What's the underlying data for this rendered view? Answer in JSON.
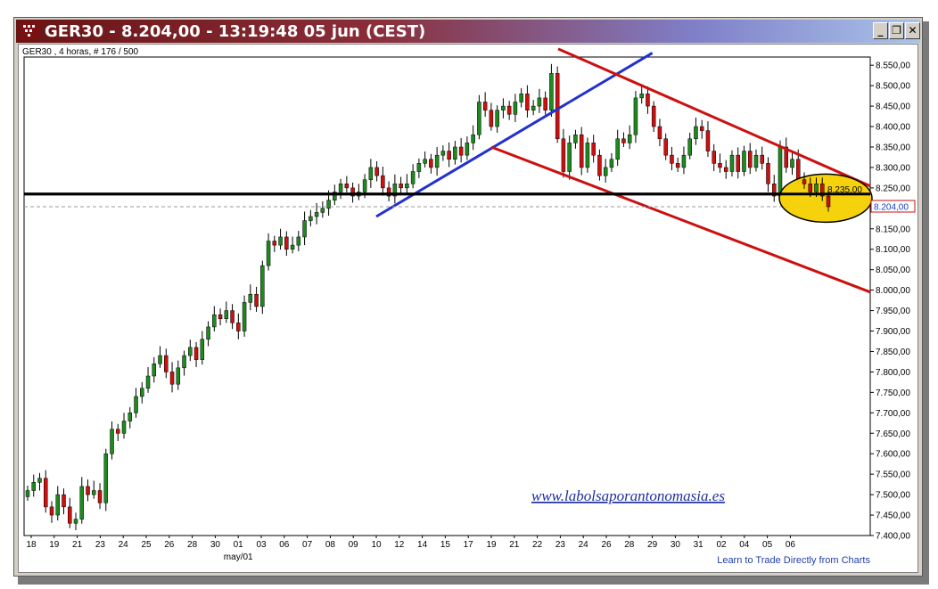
{
  "window": {
    "title": "GER30 - 8.204,00 - 13:19:48  05 jun (CEST)",
    "buttons": {
      "minimize": "_",
      "restore": "❐",
      "close": "✕"
    }
  },
  "chart_header": "GER30 , 4 horas, # 176 / 500",
  "watermark": "www.labolsaporantonomasia.es",
  "footer_link": "Learn to Trade Directly from Charts",
  "month_label": "may/01",
  "chart_data": {
    "type": "candlestick",
    "title": "GER30",
    "timeframe": "4 horas",
    "y_ticks": [
      8550,
      8500,
      8450,
      8400,
      8350,
      8300,
      8250,
      8200,
      8150,
      8100,
      8050,
      8000,
      7950,
      7900,
      7850,
      7800,
      7750,
      7700,
      7650,
      7600,
      7550,
      7500,
      7450,
      7400
    ],
    "y_tick_labels": [
      "8.550,00",
      "8.500,00",
      "8.450,00",
      "8.400,00",
      "8.350,00",
      "8.300,00",
      "8.250,00",
      "8.200,00",
      "8.150,00",
      "8.100,00",
      "8.050,00",
      "8.000,00",
      "7.950,00",
      "7.900,00",
      "7.850,00",
      "7.800,00",
      "7.750,00",
      "7.700,00",
      "7.650,00",
      "7.600,00",
      "7.550,00",
      "7.500,00",
      "7.450,00",
      "7.400,00"
    ],
    "ylim": [
      7400,
      8570
    ],
    "x_labels": [
      "18",
      "19",
      "21",
      "23",
      "24",
      "25",
      "26",
      "28",
      "30",
      "01",
      "03",
      "06",
      "07",
      "08",
      "09",
      "10",
      "12",
      "14",
      "15",
      "17",
      "19",
      "21",
      "22",
      "23",
      "24",
      "26",
      "28",
      "29",
      "30",
      "31",
      "02",
      "04",
      "05",
      "06"
    ],
    "current_price": 8204,
    "current_price_label": "8.204,00",
    "marked_level": 8235,
    "marked_level_label": "8.235,00",
    "closes": [
      7510,
      7530,
      7540,
      7470,
      7450,
      7500,
      7470,
      7430,
      7440,
      7520,
      7500,
      7510,
      7480,
      7600,
      7660,
      7650,
      7680,
      7700,
      7740,
      7760,
      7790,
      7820,
      7840,
      7800,
      7770,
      7810,
      7840,
      7860,
      7830,
      7880,
      7910,
      7940,
      7930,
      7950,
      7920,
      7900,
      7970,
      7990,
      7960,
      8060,
      8120,
      8110,
      8130,
      8100,
      8110,
      8130,
      8170,
      8180,
      8190,
      8200,
      8220,
      8240,
      8260,
      8250,
      8230,
      8240,
      8270,
      8300,
      8280,
      8250,
      8230,
      8260,
      8250,
      8260,
      8290,
      8310,
      8320,
      8300,
      8330,
      8340,
      8320,
      8350,
      8330,
      8360,
      8380,
      8460,
      8440,
      8400,
      8440,
      8450,
      8430,
      8460,
      8480,
      8440,
      8450,
      8470,
      8440,
      8530,
      8370,
      8290,
      8360,
      8380,
      8300,
      8360,
      8330,
      8280,
      8300,
      8320,
      8370,
      8360,
      8380,
      8470,
      8480,
      8450,
      8400,
      8370,
      8330,
      8310,
      8300,
      8330,
      8370,
      8400,
      8390,
      8340,
      8310,
      8300,
      8290,
      8330,
      8290,
      8340,
      8300,
      8330,
      8310,
      8260,
      8230,
      8350,
      8300,
      8320,
      8270,
      8260,
      8240,
      8260,
      8230,
      8204
    ],
    "trendlines": [
      {
        "color": "#2230d0",
        "from": [
          "10",
          8180
        ],
        "to": [
          "29",
          8580
        ]
      },
      {
        "color": "#cc1010",
        "from": [
          "21",
          8590
        ],
        "to": [
          "06",
          8330
        ]
      },
      {
        "color": "#cc1010",
        "from": [
          "19",
          8350
        ],
        "to": [
          "06",
          8070
        ]
      },
      {
        "color": "#000000",
        "level": 8235
      }
    ]
  },
  "colors": {
    "bull": "#1e8a1e",
    "bear": "#cc1010",
    "highlight_circle": "#f5d000"
  }
}
